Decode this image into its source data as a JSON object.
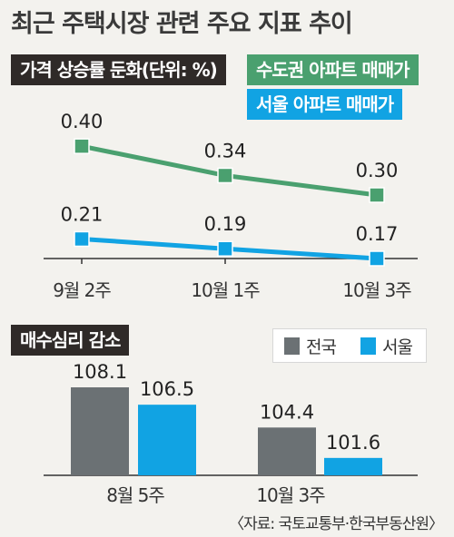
{
  "header": {
    "title": "최근 주택시장 관련 주요 지표 추이"
  },
  "price_section": {
    "tag": "가격 상승률 둔화(단위: %)",
    "legend_green": "수도권 아파트 매매가",
    "legend_blue": "서울 아파트 매매가"
  },
  "buy_section": {
    "tag": "매수심리 감소",
    "legend_all": "전국",
    "legend_seoul": "서울"
  },
  "source": "〈자료: 국토교통부·한국부동산원〉",
  "colors": {
    "green": "#4aa06f",
    "blue": "#11a3e3",
    "gray": "#6b7174",
    "dark": "#2f2a28",
    "background": "#f3f2ee"
  },
  "chart_data": [
    {
      "type": "line",
      "title": "가격 상승률 둔화(단위: %)",
      "x": [
        "9월 2주",
        "10월 1주",
        "10월 3주"
      ],
      "series": [
        {
          "name": "수도권 아파트 매매가",
          "values": [
            0.4,
            0.34,
            0.3
          ],
          "labels": [
            "0.40",
            "0.34",
            "0.30"
          ],
          "color": "#4aa06f"
        },
        {
          "name": "서울 아파트 매매가",
          "values": [
            0.21,
            0.19,
            0.17
          ],
          "labels": [
            "0.21",
            "0.19",
            "0.17"
          ],
          "color": "#11a3e3"
        }
      ],
      "grid": false
    },
    {
      "type": "bar",
      "title": "매수심리 감소",
      "categories": [
        "8월 5주",
        "10월 3주"
      ],
      "series": [
        {
          "name": "전국",
          "values": [
            108.1,
            104.4
          ],
          "color": "#6b7174"
        },
        {
          "name": "서울",
          "values": [
            106.5,
            101.6
          ],
          "color": "#11a3e3"
        }
      ],
      "legend": "top-right",
      "grid": false
    }
  ]
}
